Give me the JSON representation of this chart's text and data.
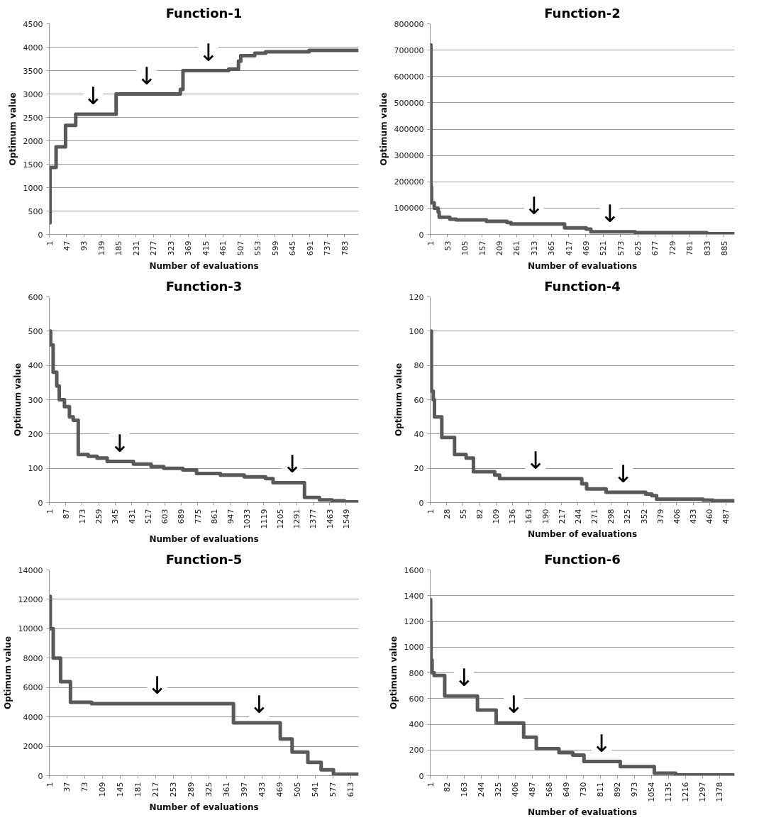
{
  "chart_data": [
    {
      "type": "step",
      "title": "Function-1",
      "xlabel": "Number of evaluations",
      "ylabel": "Optimum value",
      "grid": "y",
      "marker": "none",
      "line_style": "solid",
      "series": [
        {
          "color": "#595959",
          "x": [
            1,
            3,
            19,
            44,
            71,
            178,
            348,
            355,
            476,
            502,
            508,
            545,
            574,
            689,
            820
          ],
          "values": [
            250,
            1430,
            1870,
            2330,
            2570,
            3000,
            3100,
            3500,
            3530,
            3700,
            3820,
            3870,
            3900,
            3930,
            3930
          ]
        }
      ],
      "xlim": [
        1,
        820
      ],
      "xticks": [
        1,
        47,
        93,
        139,
        185,
        231,
        277,
        323,
        369,
        415,
        461,
        507,
        553,
        599,
        645,
        691,
        737,
        783
      ],
      "ylim": [
        0,
        4500
      ],
      "yticks": [
        0,
        500,
        1000,
        1500,
        2000,
        2500,
        3000,
        3500,
        4000,
        4500
      ],
      "annotations": [
        {
          "text": "↓",
          "x": 117,
          "y": 2570
        },
        {
          "text": "↓",
          "x": 259,
          "y": 3000
        },
        {
          "text": "↓",
          "x": 422,
          "y": 3500
        }
      ]
    },
    {
      "type": "step",
      "title": "Function-2",
      "xlabel": "Number of evaluations",
      "ylabel": "Optimum value",
      "grid": "y",
      "marker": "none",
      "line_style": "solid",
      "series": [
        {
          "color": "#595959",
          "x": [
            1,
            3,
            5,
            13,
            25,
            28,
            60,
            79,
            170,
            232,
            244,
            405,
            470,
            484,
            617,
            833,
            916
          ],
          "values": [
            720000,
            180000,
            120000,
            100000,
            85000,
            65000,
            58000,
            55000,
            50000,
            45000,
            40000,
            25000,
            20000,
            10000,
            7000,
            3000,
            3000
          ]
        }
      ],
      "xlim": [
        1,
        916
      ],
      "xticks": [
        1,
        53,
        105,
        157,
        209,
        261,
        313,
        365,
        417,
        469,
        521,
        573,
        625,
        677,
        729,
        781,
        833,
        885
      ],
      "ylim": [
        0,
        800000
      ],
      "yticks": [
        0,
        100000,
        200000,
        300000,
        400000,
        500000,
        600000,
        700000,
        800000
      ],
      "annotations": [
        {
          "text": "↓",
          "x": 313,
          "y": 40000
        },
        {
          "text": "↓",
          "x": 541,
          "y": 10000
        }
      ]
    },
    {
      "type": "step",
      "title": "Function-3",
      "xlabel": "Number of evaluations",
      "ylabel": "Optimum value",
      "grid": "y",
      "marker": "none",
      "line_style": "solid",
      "series": [
        {
          "color": "#595959",
          "x": [
            1,
            8,
            21,
            40,
            53,
            80,
            106,
            126,
            152,
            204,
            250,
            303,
            440,
            532,
            598,
            697,
            769,
            893,
            1018,
            1129,
            1168,
            1332,
            1410,
            1476,
            1541,
            1614
          ],
          "values": [
            500,
            460,
            380,
            340,
            300,
            280,
            250,
            240,
            140,
            135,
            130,
            120,
            112,
            105,
            100,
            95,
            85,
            80,
            75,
            70,
            58,
            15,
            8,
            5,
            2,
            2
          ]
        }
      ],
      "xlim": [
        1,
        1614
      ],
      "xticks": [
        1,
        87,
        173,
        259,
        345,
        431,
        517,
        603,
        689,
        775,
        861,
        947,
        1033,
        1119,
        1205,
        1291,
        1377,
        1463,
        1549
      ],
      "ylim": [
        0,
        600
      ],
      "yticks": [
        0,
        100,
        200,
        300,
        400,
        500,
        600
      ],
      "annotations": [
        {
          "text": "↓",
          "x": 368,
          "y": 120
        },
        {
          "text": "↓",
          "x": 1268,
          "y": 58
        }
      ]
    },
    {
      "type": "step",
      "title": "Function-4",
      "xlabel": "Number of evaluations",
      "ylabel": "Optimum value",
      "grid": "y",
      "marker": "none",
      "line_style": "solid",
      "series": [
        {
          "color": "#595959",
          "x": [
            1,
            3,
            6,
            8,
            20,
            41,
            60,
            72,
            107,
            115,
            250,
            258,
            290,
            355,
            365,
            373,
            449,
            465,
            501
          ],
          "values": [
            100,
            65,
            60,
            50,
            38,
            28,
            26,
            18,
            16,
            14,
            11,
            8,
            6,
            5,
            4,
            2,
            1.5,
            1,
            1
          ]
        }
      ],
      "xlim": [
        1,
        501
      ],
      "xticks": [
        1,
        28,
        55,
        82,
        109,
        136,
        163,
        190,
        217,
        244,
        271,
        298,
        325,
        352,
        379,
        406,
        433,
        460,
        487
      ],
      "ylim": [
        0,
        120
      ],
      "yticks": [
        0,
        20,
        40,
        60,
        80,
        100,
        120
      ],
      "annotations": [
        {
          "text": "↓",
          "x": 174,
          "y": 14
        },
        {
          "text": "↓",
          "x": 318,
          "y": 6
        }
      ]
    },
    {
      "type": "step",
      "title": "Function-5",
      "xlabel": "Number of evaluations",
      "ylabel": "Optimum value",
      "grid": "y",
      "marker": "none",
      "line_style": "solid",
      "series": [
        {
          "color": "#595959",
          "x": [
            1,
            3,
            9,
            24,
            44,
            87,
            375,
            470,
            494,
            526,
            553,
            578,
            629
          ],
          "values": [
            12200,
            10000,
            8000,
            6400,
            5000,
            4900,
            3600,
            2500,
            1600,
            900,
            400,
            100,
            100
          ]
        }
      ],
      "xlim": [
        1,
        629
      ],
      "xticks": [
        1,
        37,
        73,
        109,
        145,
        181,
        217,
        253,
        289,
        325,
        361,
        397,
        433,
        469,
        505,
        541,
        577,
        613
      ],
      "ylim": [
        0,
        14000
      ],
      "yticks": [
        0,
        2000,
        4000,
        6000,
        8000,
        10000,
        12000,
        14000
      ],
      "annotations": [
        {
          "text": "↓",
          "x": 220,
          "y": 4900
        },
        {
          "text": "↓",
          "x": 427,
          "y": 3600
        }
      ]
    },
    {
      "type": "step",
      "title": "Function-6",
      "xlabel": "Number of evaluations",
      "ylabel": "Optimum value",
      "grid": "y",
      "marker": "none",
      "line_style": "solid",
      "series": [
        {
          "color": "#595959",
          "x": [
            1,
            3,
            5,
            10,
            20,
            70,
            226,
            315,
            446,
            506,
            614,
            680,
            733,
            906,
            1068,
            1170,
            1450
          ],
          "values": [
            1370,
            1200,
            900,
            800,
            780,
            620,
            510,
            410,
            300,
            210,
            180,
            160,
            110,
            70,
            20,
            5,
            5
          ]
        }
      ],
      "xlim": [
        1,
        1450
      ],
      "xticks": [
        1,
        82,
        163,
        244,
        325,
        406,
        487,
        568,
        649,
        730,
        811,
        892,
        973,
        1054,
        1135,
        1216,
        1297,
        1378
      ],
      "ylim": [
        0,
        1600
      ],
      "yticks": [
        0,
        200,
        400,
        600,
        800,
        1000,
        1200,
        1400,
        1600
      ],
      "annotations": [
        {
          "text": "↓",
          "x": 162,
          "y": 620
        },
        {
          "text": "↓",
          "x": 399,
          "y": 410
        },
        {
          "text": "↓",
          "x": 817,
          "y": 110
        }
      ]
    }
  ]
}
